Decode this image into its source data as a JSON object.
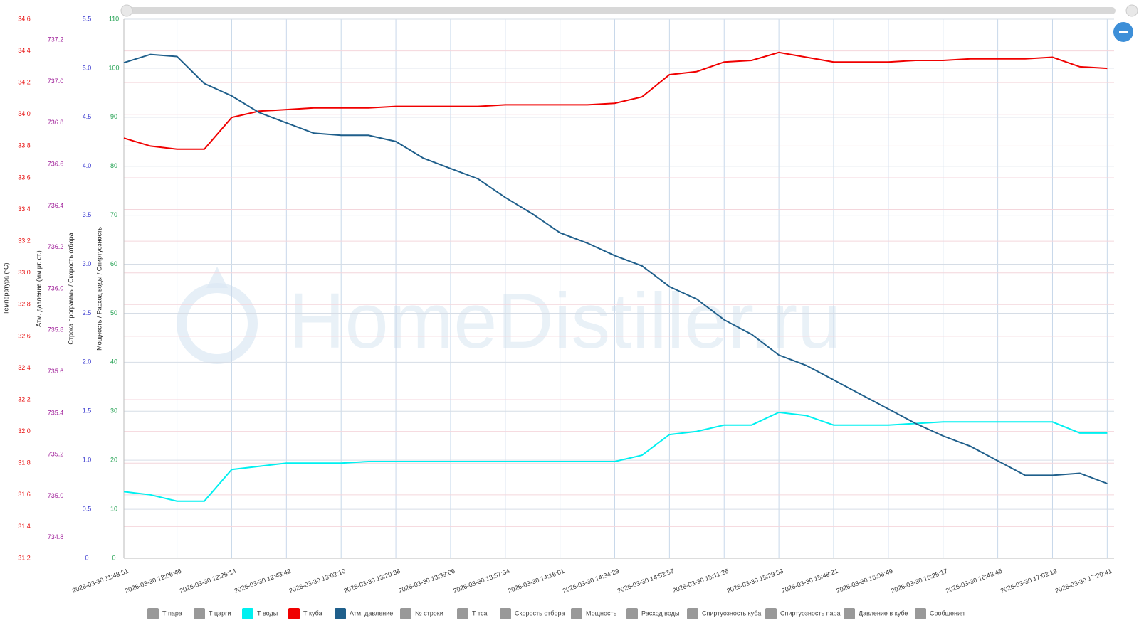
{
  "chart_data": {
    "type": "line",
    "watermark": "HomeDistiller.ru",
    "axes": [
      {
        "label": "Температура (°C)",
        "color": "#e81010",
        "ylim": [
          31.2,
          34.6
        ],
        "yticks": [
          31.2,
          31.4,
          31.6,
          31.8,
          {
            "value": 32,
            "label": "32.0"
          },
          32.2,
          32.4,
          32.6,
          32.8,
          {
            "value": 33,
            "label": "33.0"
          },
          33.2,
          33.4,
          33.6,
          33.8,
          {
            "value": 34,
            "label": "34.0"
          },
          34.2,
          34.4,
          34.6
        ]
      },
      {
        "label": "Атм. давление (мм рт. ст.)",
        "color": "#a0209a",
        "ylim": [
          734.7,
          737.3
        ],
        "yticks": [
          734.8,
          {
            "value": 735,
            "label": "735.0"
          },
          735.2,
          735.4,
          735.6,
          735.8,
          {
            "value": 736,
            "label": "736.0"
          },
          736.2,
          736.4,
          736.6,
          736.8,
          {
            "value": 737,
            "label": "737.0"
          },
          737.2
        ]
      },
      {
        "label": "Строка программы / Скорость отбора",
        "color": "#3a3ad0",
        "ylim": [
          0,
          5.5
        ],
        "yticks": [
          0,
          0.5,
          {
            "value": 1,
            "label": "1.0"
          },
          1.5,
          {
            "value": 2,
            "label": "2.0"
          },
          2.5,
          {
            "value": 3,
            "label": "3.0"
          },
          3.5,
          {
            "value": 4,
            "label": "4.0"
          },
          4.5,
          {
            "value": 5,
            "label": "5.0"
          },
          5.5
        ]
      },
      {
        "label": "Мощность / Расход воды / Спиртуозность",
        "color": "#20a050",
        "ylim": [
          0,
          110
        ],
        "yticks": [
          0,
          10,
          20,
          30,
          40,
          50,
          60,
          70,
          80,
          90,
          100,
          110
        ]
      }
    ],
    "grid": true,
    "xlim": [
      "2026-03-30 11:48:51",
      "2026-03-30 17:23:00"
    ],
    "xticks": [
      "2026-03-30 11:48:51",
      "2026-03-30 12:06:46",
      "2026-03-30 12:25:14",
      "2026-03-30 12:43:42",
      "2026-03-30 13:02:10",
      "2026-03-30 13:20:38",
      "2026-03-30 13:39:06",
      "2026-03-30 13:57:34",
      "2026-03-30 14:16:01",
      "2026-03-30 14:34:29",
      "2026-03-30 14:52:57",
      "2026-03-30 15:11:25",
      "2026-03-30 15:29:53",
      "2026-03-30 15:48:21",
      "2026-03-30 16:06:49",
      "2026-03-30 16:25:17",
      "2026-03-30 16:43:45",
      "2026-03-30 17:02:13",
      "2026-03-30 17:20:41"
    ],
    "x": [
      "2026-03-30 11:48:51",
      "2026-03-30 11:57:48",
      "2026-03-30 12:06:46",
      "2026-03-30 12:16:00",
      "2026-03-30 12:25:14",
      "2026-03-30 12:34:28",
      "2026-03-30 12:43:42",
      "2026-03-30 12:52:56",
      "2026-03-30 13:02:10",
      "2026-03-30 13:11:24",
      "2026-03-30 13:20:38",
      "2026-03-30 13:29:52",
      "2026-03-30 13:39:06",
      "2026-03-30 13:48:20",
      "2026-03-30 13:57:34",
      "2026-03-30 14:06:48",
      "2026-03-30 14:16:01",
      "2026-03-30 14:25:15",
      "2026-03-30 14:34:29",
      "2026-03-30 14:43:43",
      "2026-03-30 14:52:57",
      "2026-03-30 15:02:11",
      "2026-03-30 15:11:25",
      "2026-03-30 15:20:39",
      "2026-03-30 15:29:53",
      "2026-03-30 15:39:07",
      "2026-03-30 15:48:21",
      "2026-03-30 15:57:35",
      "2026-03-30 16:06:49",
      "2026-03-30 16:16:03",
      "2026-03-30 16:25:17",
      "2026-03-30 16:34:31",
      "2026-03-30 16:43:45",
      "2026-03-30 16:52:59",
      "2026-03-30 17:02:13",
      "2026-03-30 17:11:27",
      "2026-03-30 17:20:41"
    ],
    "series": [
      {
        "name": "Т воды",
        "color": "#00f0f0",
        "axis": 0,
        "values": [
          31.62,
          31.6,
          31.56,
          31.56,
          31.76,
          31.78,
          31.8,
          31.8,
          31.8,
          31.81,
          31.81,
          31.81,
          31.81,
          31.81,
          31.81,
          31.81,
          31.81,
          31.81,
          31.81,
          31.85,
          31.98,
          32.0,
          32.04,
          32.04,
          32.12,
          32.1,
          32.04,
          32.04,
          32.04,
          32.05,
          32.06,
          32.06,
          32.06,
          32.06,
          32.06,
          31.99,
          31.99
        ]
      },
      {
        "name": "Т куба",
        "color": "#f00000",
        "axis": 0,
        "values": [
          33.85,
          33.8,
          33.78,
          33.78,
          33.98,
          34.02,
          34.03,
          34.04,
          34.04,
          34.04,
          34.05,
          34.05,
          34.05,
          34.05,
          34.06,
          34.06,
          34.06,
          34.06,
          34.07,
          34.11,
          34.25,
          34.27,
          34.33,
          34.34,
          34.39,
          34.36,
          34.33,
          34.33,
          34.33,
          34.34,
          34.34,
          34.35,
          34.35,
          34.35,
          34.36,
          34.3,
          34.29
        ]
      },
      {
        "name": "Атм. давление",
        "color": "#1f5f8b",
        "axis": 1,
        "values": [
          737.09,
          737.13,
          737.12,
          736.99,
          736.93,
          736.85,
          736.8,
          736.75,
          736.74,
          736.74,
          736.71,
          736.63,
          736.58,
          736.53,
          736.44,
          736.36,
          736.27,
          736.22,
          736.16,
          736.11,
          736.01,
          735.95,
          735.85,
          735.78,
          735.68,
          735.63,
          735.56,
          735.49,
          735.42,
          735.35,
          735.29,
          735.24,
          735.17,
          735.1,
          735.1,
          735.11,
          735.06
        ]
      }
    ],
    "legend": [
      {
        "name": "Т пара",
        "color": "#999999"
      },
      {
        "name": "Т царги",
        "color": "#999999"
      },
      {
        "name": "Т воды",
        "color": "#00f0f0"
      },
      {
        "name": "Т куба",
        "color": "#f00000"
      },
      {
        "name": "Атм. давление",
        "color": "#1f5f8b"
      },
      {
        "name": "№ строки",
        "color": "#999999"
      },
      {
        "name": "Т тса",
        "color": "#999999"
      },
      {
        "name": "Скорость отбора",
        "color": "#999999"
      },
      {
        "name": "Мощность",
        "color": "#999999"
      },
      {
        "name": "Расход воды",
        "color": "#999999"
      },
      {
        "name": "Спиртуозность куба",
        "color": "#999999"
      },
      {
        "name": "Спиртуозность пара",
        "color": "#999999"
      },
      {
        "name": "Давление в кубе",
        "color": "#999999"
      },
      {
        "name": "Сообщения",
        "color": "#999999"
      }
    ]
  }
}
